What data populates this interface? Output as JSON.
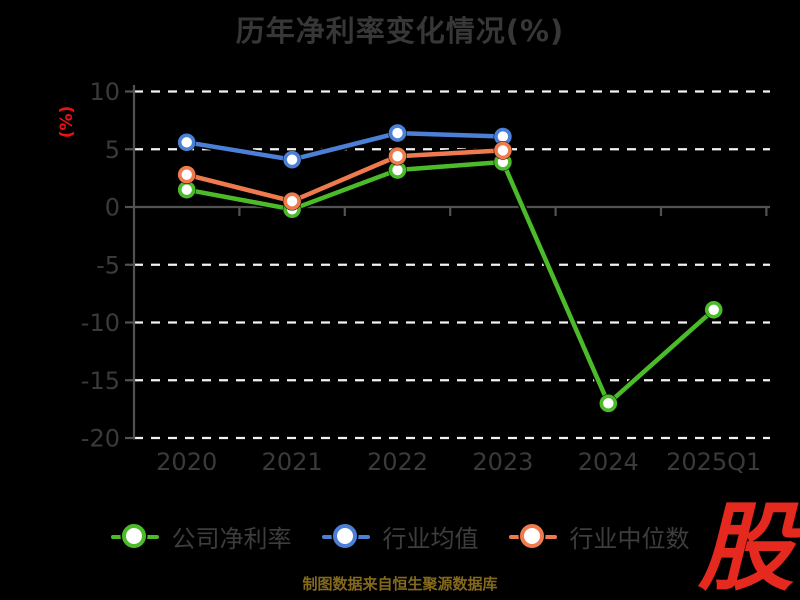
{
  "title": "历年净利率变化情况(%)",
  "chart_data": {
    "type": "line",
    "categories": [
      "2020",
      "2021",
      "2022",
      "2023",
      "2024",
      "2025Q1"
    ],
    "series": [
      {
        "name": "公司净利率",
        "color": "#4cbb2a",
        "values": [
          1.5,
          -0.2,
          3.2,
          3.9,
          -17.0,
          -8.9
        ]
      },
      {
        "name": "行业均值",
        "color": "#4b80d6",
        "values": [
          5.6,
          4.1,
          6.4,
          6.1,
          null,
          null
        ]
      },
      {
        "name": "行业中位数",
        "color": "#ee7a4e",
        "values": [
          2.8,
          0.5,
          4.4,
          4.9,
          null,
          null
        ]
      }
    ],
    "title": "历年净利率变化情况(%)",
    "xlabel": "",
    "ylabel": "(%)",
    "ylabel_color": "#ee1111",
    "ylim": [
      -20,
      10
    ],
    "yticks": [
      10,
      5,
      0,
      -5,
      -10,
      -15,
      -20
    ],
    "grid": "horizontal-dashed-white",
    "gridline_color": "#f2f2f2",
    "axis_color": "#525252",
    "tick_label_color": "#3a3a3a",
    "marker_style": "white-filled-circle",
    "legend_position": "bottom",
    "background": "#000000"
  },
  "source_note": {
    "text": "制图数据来自恒生聚源数据库",
    "color": "#84691c"
  },
  "logo": {
    "text": "股",
    "color": "#e5291f"
  }
}
